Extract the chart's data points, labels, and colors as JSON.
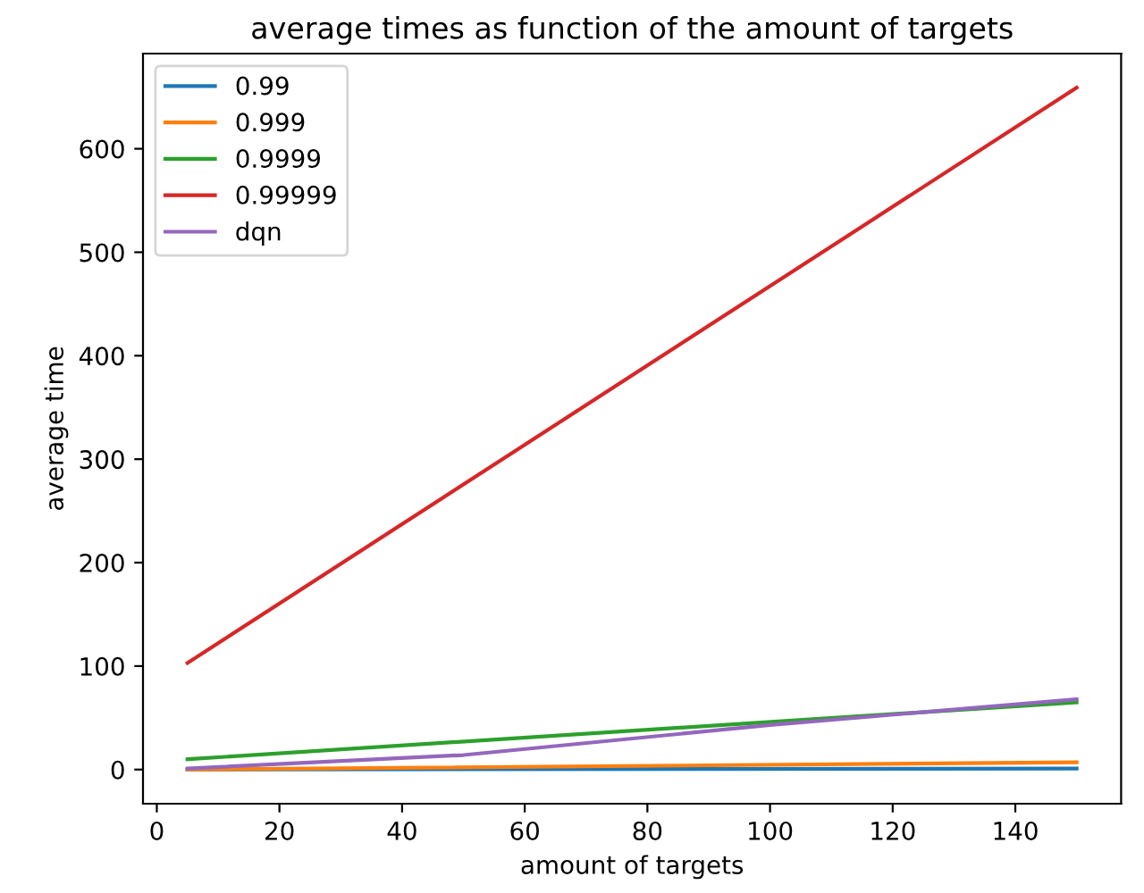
{
  "chart_data": {
    "type": "line",
    "title": "average times as function of the amount of targets",
    "xlabel": "amount of targets",
    "ylabel": "average time",
    "xlim": [
      -2.25,
      157.25
    ],
    "ylim": [
      -33,
      692
    ],
    "xticks": [
      0,
      20,
      40,
      60,
      80,
      100,
      120,
      140
    ],
    "yticks": [
      0,
      100,
      200,
      300,
      400,
      500,
      600
    ],
    "legend": "top left",
    "grid": false,
    "series": [
      {
        "name": "0.99",
        "color": "#1f77b4",
        "x": [
          5,
          150
        ],
        "values": [
          0,
          1
        ]
      },
      {
        "name": "0.999",
        "color": "#ff7f0e",
        "x": [
          5,
          150
        ],
        "values": [
          0,
          7
        ]
      },
      {
        "name": "0.9999",
        "color": "#2ca02c",
        "x": [
          5,
          150
        ],
        "values": [
          10,
          65
        ]
      },
      {
        "name": "0.99999",
        "color": "#d62728",
        "x": [
          5,
          150
        ],
        "values": [
          103,
          659
        ]
      },
      {
        "name": "dqn",
        "color": "#9467bd",
        "x": [
          5,
          50,
          100,
          150
        ],
        "values": [
          1,
          14,
          43,
          68
        ]
      }
    ]
  }
}
